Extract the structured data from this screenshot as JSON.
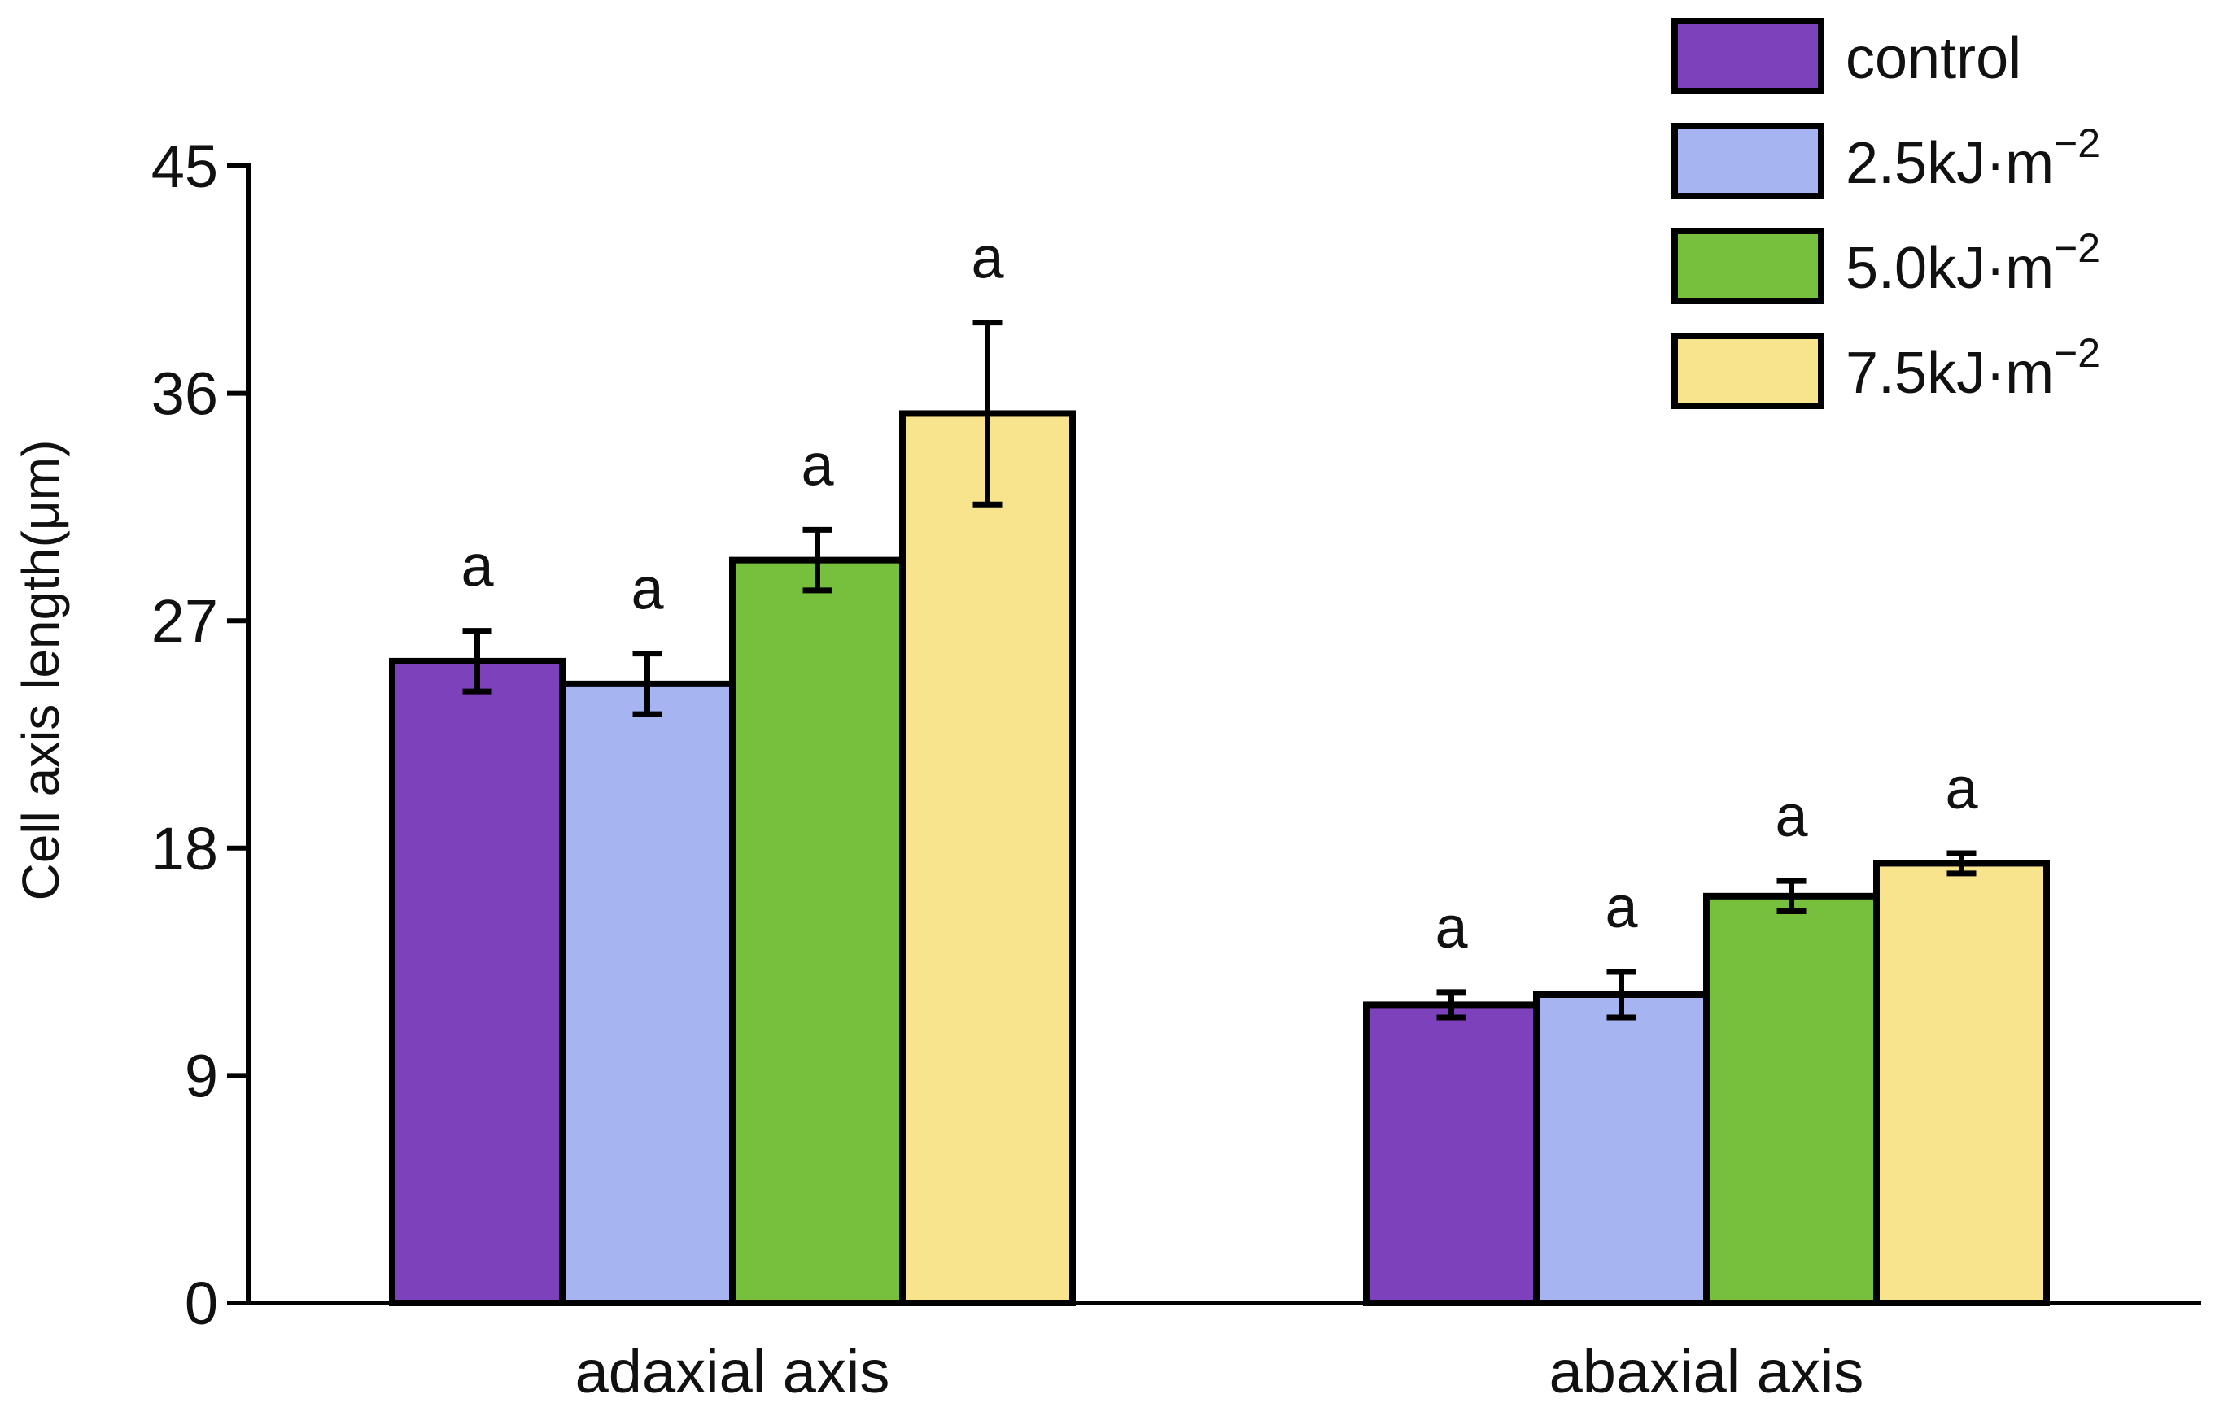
{
  "chart_data": {
    "type": "bar",
    "title": "",
    "xlabel": "",
    "ylabel": "Cell axis length(μm)",
    "ylim": [
      0,
      45
    ],
    "yticks": [
      0,
      9,
      18,
      27,
      36,
      45
    ],
    "categories": [
      "adaxial axis",
      "abaxial axis"
    ],
    "series": [
      {
        "name": "control",
        "legend_base": "control",
        "legend_sup": "",
        "color": "#7d41bb",
        "values": [
          25.4,
          11.8
        ],
        "errors": [
          1.2,
          0.5
        ],
        "significance": [
          "a",
          "a"
        ]
      },
      {
        "name": "2.5kJ·m−2",
        "legend_base": "2.5kJ·m",
        "legend_sup": "−2",
        "color": "#a7b4f2",
        "values": [
          24.5,
          12.2
        ],
        "errors": [
          1.2,
          0.9
        ],
        "significance": [
          "a",
          "a"
        ]
      },
      {
        "name": "5.0kJ·m−2",
        "legend_base": "5.0kJ·m",
        "legend_sup": "−2",
        "color": "#77c03e",
        "values": [
          29.4,
          16.1
        ],
        "errors": [
          1.2,
          0.6
        ],
        "significance": [
          "a",
          "a"
        ]
      },
      {
        "name": "7.5kJ·m−2",
        "legend_base": "7.5kJ·m",
        "legend_sup": "−2",
        "color": "#f8e48c",
        "values": [
          35.2,
          17.4
        ],
        "errors": [
          3.6,
          0.4
        ],
        "significance": [
          "a",
          "a"
        ]
      }
    ]
  }
}
